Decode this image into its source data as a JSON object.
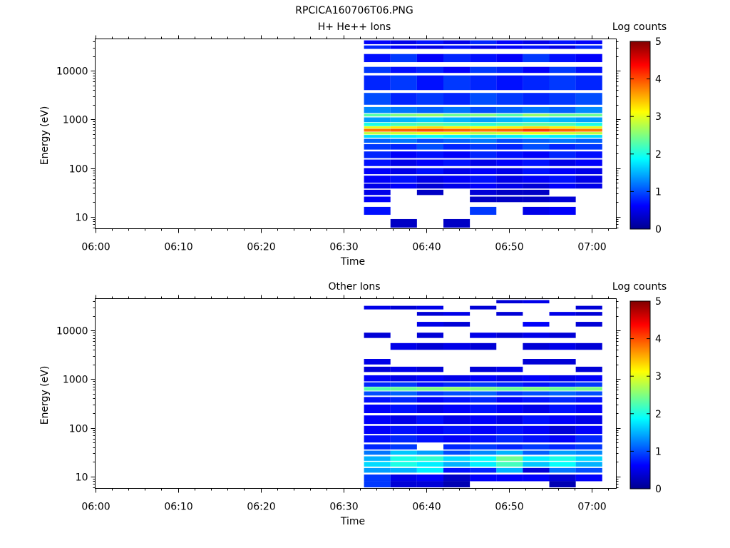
{
  "figure": {
    "title": "RPCICA160706T06.PNG"
  },
  "colors": {
    "colormap": [
      "#00008f",
      "#0000ff",
      "#0080ff",
      "#00ffff",
      "#80ff80",
      "#ffff00",
      "#ff8000",
      "#ff0000",
      "#800000"
    ],
    "axis": "#000000",
    "background": "#ffffff"
  },
  "chart_data": [
    {
      "type": "heatmap",
      "title": "H+ He++ Ions",
      "xlabel": "Time",
      "ylabel": "Energy (eV)",
      "x_ticks": [
        "06:00",
        "06:10",
        "06:20",
        "06:30",
        "06:40",
        "06:50",
        "07:00"
      ],
      "x_tick_minutes": [
        0,
        10,
        20,
        30,
        40,
        50,
        60
      ],
      "xlim_minutes": [
        0,
        63
      ],
      "xlim": [
        "06:00",
        "07:03"
      ],
      "y_scale": "log",
      "ylim": [
        5.7,
        45000
      ],
      "y_ticks": [
        10,
        100,
        1000,
        10000
      ],
      "y_tick_labels": [
        "10",
        "100",
        "1000",
        "10000"
      ],
      "colorbar": {
        "label": "Log counts",
        "range": [
          0,
          5
        ],
        "ticks": [
          "0",
          "1",
          "2",
          "3",
          "4",
          "5"
        ]
      },
      "time_bins_minutes": [
        32.5,
        35.7,
        38.9,
        42.1,
        45.3,
        48.5,
        51.7,
        54.9,
        58.1,
        61.3
      ],
      "time_bin_labels": [
        "06:32:30",
        "06:35:42",
        "06:38:54",
        "06:42:06",
        "06:45:18",
        "06:48:30",
        "06:51:42",
        "06:54:54",
        "06:58:06",
        "07:01:18"
      ],
      "energy_bands_eV": [
        {
          "energy": [
            35000,
            42000
          ],
          "level": [
            0.6,
            0.5,
            0.7,
            0.5,
            0.8,
            0.6,
            0.5,
            0.7,
            0.6
          ]
        },
        {
          "energy": [
            28000,
            33000
          ],
          "level": [
            0.8,
            0.6,
            0.5,
            0.7,
            0.5,
            0.6,
            0.7,
            0.5,
            0.8
          ]
        },
        {
          "energy": [
            15000,
            22000
          ],
          "level": [
            0.7,
            0.9,
            0.6,
            0.8,
            0.7,
            0.6,
            0.9,
            0.7,
            0.6
          ]
        },
        {
          "energy": [
            9000,
            12000
          ],
          "level": [
            0.9,
            0.7,
            0.8,
            0.6,
            0.9,
            0.8,
            0.6,
            0.9,
            0.7
          ]
        },
        {
          "energy": [
            4000,
            8000
          ],
          "level": [
            0.8,
            0.9,
            0.7,
            0.9,
            0.8,
            0.7,
            0.8,
            0.9,
            0.8
          ]
        },
        {
          "energy": [
            2000,
            3500
          ],
          "level": [
            1.0,
            0.8,
            0.9,
            0.8,
            1.0,
            0.9,
            0.8,
            0.9,
            1.0
          ]
        },
        {
          "energy": [
            1350,
            1800
          ],
          "level": [
            1.3,
            1.2,
            1.1,
            1.2,
            1.0,
            1.1,
            1.2,
            1.1,
            1.3
          ]
        },
        {
          "energy": [
            1150,
            1300
          ],
          "level": [
            2.3,
            2.5,
            2.6,
            2.4,
            2.5,
            2.3,
            2.6,
            2.4,
            2.4
          ]
        },
        {
          "energy": [
            880,
            1100
          ],
          "level": [
            1.4,
            1.5,
            1.6,
            1.5,
            1.4,
            1.5,
            1.6,
            1.5,
            1.4
          ]
        },
        {
          "energy": [
            730,
            860
          ],
          "level": [
            2.0,
            2.2,
            2.3,
            2.2,
            2.1,
            2.2,
            2.3,
            2.2,
            2.0
          ]
        },
        {
          "energy": [
            650,
            720
          ],
          "level": [
            3.0,
            3.2,
            3.3,
            3.2,
            3.1,
            3.2,
            3.3,
            3.2,
            3.0
          ]
        },
        {
          "energy": [
            560,
            640
          ],
          "level": [
            3.8,
            3.9,
            4.0,
            3.9,
            3.8,
            3.9,
            4.1,
            3.9,
            3.8
          ]
        },
        {
          "energy": [
            490,
            550
          ],
          "level": [
            2.8,
            2.9,
            3.0,
            3.0,
            2.8,
            2.9,
            3.0,
            2.9,
            2.8
          ]
        },
        {
          "energy": [
            420,
            480
          ],
          "level": [
            1.7,
            1.8,
            1.9,
            1.8,
            1.7,
            1.8,
            1.9,
            1.8,
            1.7
          ]
        },
        {
          "energy": [
            330,
            400
          ],
          "level": [
            1.1,
            1.2,
            1.0,
            1.1,
            1.2,
            1.0,
            1.1,
            1.2,
            1.1
          ]
        },
        {
          "energy": [
            240,
            310
          ],
          "level": [
            0.9,
            0.8,
            1.0,
            0.8,
            0.9,
            0.8,
            1.0,
            0.8,
            0.9
          ]
        },
        {
          "energy": [
            160,
            220
          ],
          "level": [
            0.8,
            0.6,
            0.7,
            0.6,
            0.8,
            0.7,
            0.6,
            0.8,
            0.7
          ]
        },
        {
          "energy": [
            110,
            150
          ],
          "level": [
            0.7,
            0.5,
            0.6,
            0.7,
            0.5,
            0.6,
            0.7,
            0.5,
            0.6
          ]
        },
        {
          "energy": [
            75,
            100
          ],
          "level": [
            0.6,
            0.5,
            0.7,
            0.5,
            0.6,
            0.5,
            0.7,
            0.6,
            0.5
          ]
        },
        {
          "energy": [
            50,
            70
          ],
          "level": [
            0.6,
            0.7,
            0.5,
            0.6,
            0.7,
            0.5,
            0.6,
            0.7,
            0.5
          ]
        },
        {
          "energy": [
            38,
            48
          ],
          "level": [
            0.5,
            0.6,
            0.4,
            0.5,
            0.6,
            0.5,
            0.4,
            0.6,
            0.5
          ]
        },
        {
          "energy": [
            28,
            36
          ],
          "level": [
            0.5,
            null,
            0.3,
            null,
            0.4,
            0.3,
            0.3,
            null,
            null
          ]
        },
        {
          "energy": [
            20,
            26
          ],
          "level": [
            0.6,
            null,
            null,
            null,
            0.3,
            0.3,
            0.3,
            0.4,
            null
          ]
        },
        {
          "energy": [
            11,
            16
          ],
          "level": [
            0.7,
            null,
            null,
            null,
            0.9,
            null,
            0.5,
            0.6,
            null
          ]
        },
        {
          "energy": [
            6,
            9
          ],
          "level": [
            null,
            0.3,
            null,
            0.3,
            null,
            null,
            null,
            null,
            null
          ]
        }
      ]
    },
    {
      "type": "heatmap",
      "title": "Other Ions",
      "xlabel": "Time",
      "ylabel": "Energy (eV)",
      "x_ticks": [
        "06:00",
        "06:10",
        "06:20",
        "06:30",
        "06:40",
        "06:50",
        "07:00"
      ],
      "x_tick_minutes": [
        0,
        10,
        20,
        30,
        40,
        50,
        60
      ],
      "xlim_minutes": [
        0,
        63
      ],
      "xlim": [
        "06:00",
        "07:03"
      ],
      "y_scale": "log",
      "ylim": [
        5.7,
        45000
      ],
      "y_ticks": [
        10,
        100,
        1000,
        10000
      ],
      "y_tick_labels": [
        "10",
        "100",
        "1000",
        "10000"
      ],
      "colorbar": {
        "label": "Log counts",
        "range": [
          0,
          5
        ],
        "ticks": [
          "0",
          "1",
          "2",
          "3",
          "4",
          "5"
        ]
      },
      "time_bins_minutes": [
        32.5,
        35.7,
        38.9,
        42.1,
        45.3,
        48.5,
        51.7,
        54.9,
        58.1,
        61.3
      ],
      "time_bin_labels": [
        "06:32:30",
        "06:35:42",
        "06:38:54",
        "06:42:06",
        "06:45:18",
        "06:48:30",
        "06:51:42",
        "06:54:54",
        "06:58:06",
        "07:01:18"
      ],
      "energy_bands_eV": [
        {
          "energy": [
            36000,
            42000
          ],
          "level": [
            null,
            null,
            null,
            null,
            null,
            0.4,
            0.5,
            null,
            null
          ]
        },
        {
          "energy": [
            27000,
            32000
          ],
          "level": [
            0.5,
            0.4,
            0.5,
            null,
            0.4,
            null,
            null,
            null,
            0.4
          ]
        },
        {
          "energy": [
            20000,
            24000
          ],
          "level": [
            null,
            null,
            0.4,
            0.5,
            null,
            0.4,
            null,
            0.5,
            0.4
          ]
        },
        {
          "energy": [
            12000,
            15000
          ],
          "level": [
            null,
            null,
            0.5,
            0.4,
            null,
            null,
            0.6,
            null,
            0.4
          ]
        },
        {
          "energy": [
            7000,
            9000
          ],
          "level": [
            0.4,
            null,
            0.4,
            null,
            0.5,
            0.4,
            0.5,
            0.4,
            null
          ]
        },
        {
          "energy": [
            4000,
            5500
          ],
          "level": [
            null,
            0.5,
            0.4,
            0.5,
            0.4,
            null,
            0.4,
            0.5,
            0.4
          ]
        },
        {
          "energy": [
            2000,
            2600
          ],
          "level": [
            0.5,
            null,
            null,
            null,
            null,
            null,
            0.4,
            0.4,
            null
          ]
        },
        {
          "energy": [
            1400,
            1800
          ],
          "level": [
            0.4,
            0.5,
            0.4,
            null,
            0.4,
            0.5,
            null,
            null,
            0.4
          ]
        },
        {
          "energy": [
            900,
            1200
          ],
          "level": [
            0.6,
            0.5,
            0.6,
            0.5,
            0.6,
            0.5,
            0.6,
            0.5,
            0.6
          ]
        },
        {
          "energy": [
            700,
            860
          ],
          "level": [
            0.8,
            0.9,
            0.7,
            0.8,
            0.9,
            0.8,
            0.7,
            0.8,
            0.9
          ]
        },
        {
          "energy": [
            580,
            690
          ],
          "level": [
            2.3,
            2.4,
            2.5,
            2.6,
            2.5,
            2.4,
            2.5,
            2.4,
            2.5
          ]
        },
        {
          "energy": [
            460,
            560
          ],
          "level": [
            1.0,
            1.1,
            0.9,
            1.0,
            1.1,
            0.9,
            1.0,
            1.1,
            1.0
          ]
        },
        {
          "energy": [
            330,
            430
          ],
          "level": [
            0.7,
            0.8,
            0.6,
            0.7,
            0.8,
            0.6,
            0.7,
            0.8,
            0.7
          ]
        },
        {
          "energy": [
            200,
            300
          ],
          "level": [
            0.6,
            0.7,
            0.5,
            0.6,
            0.7,
            0.6,
            0.5,
            0.7,
            0.6
          ]
        },
        {
          "energy": [
            120,
            180
          ],
          "level": [
            0.6,
            0.5,
            0.7,
            0.5,
            0.6,
            0.5,
            0.7,
            0.6,
            0.5
          ]
        },
        {
          "energy": [
            75,
            110
          ],
          "level": [
            0.6,
            0.7,
            0.6,
            0.7,
            0.6,
            0.7,
            0.6,
            0.4,
            0.6
          ]
        },
        {
          "energy": [
            50,
            70
          ],
          "level": [
            0.7,
            0.8,
            0.7,
            0.6,
            0.7,
            0.8,
            0.7,
            0.6,
            0.8
          ]
        },
        {
          "energy": [
            36,
            46
          ],
          "level": [
            0.8,
            0.9,
            null,
            0.8,
            0.9,
            0.8,
            0.9,
            0.8,
            0.9
          ]
        },
        {
          "energy": [
            28,
            34
          ],
          "level": [
            1.2,
            1.6,
            1.4,
            1.0,
            1.3,
            1.5,
            1.1,
            1.4,
            1.3
          ]
        },
        {
          "energy": [
            21,
            26
          ],
          "level": [
            1.5,
            2.0,
            2.1,
            1.7,
            1.9,
            2.4,
            1.8,
            2.0,
            1.7
          ]
        },
        {
          "energy": [
            16,
            20
          ],
          "level": [
            1.7,
            2.0,
            1.8,
            1.5,
            1.8,
            2.2,
            1.6,
            1.9,
            1.5
          ]
        },
        {
          "energy": [
            12,
            15
          ],
          "level": [
            1.4,
            1.5,
            1.8,
            0.7,
            0.8,
            1.5,
            0.4,
            1.2,
            1.0
          ]
        },
        {
          "energy": [
            8,
            11
          ],
          "level": [
            0.9,
            0.5,
            0.6,
            0.3,
            0.6,
            0.6,
            0.6,
            0.4,
            0.6
          ]
        },
        {
          "energy": [
            6,
            8
          ],
          "level": [
            0.9,
            0.4,
            0.4,
            0.2,
            null,
            null,
            null,
            0.2,
            null
          ]
        }
      ]
    }
  ]
}
